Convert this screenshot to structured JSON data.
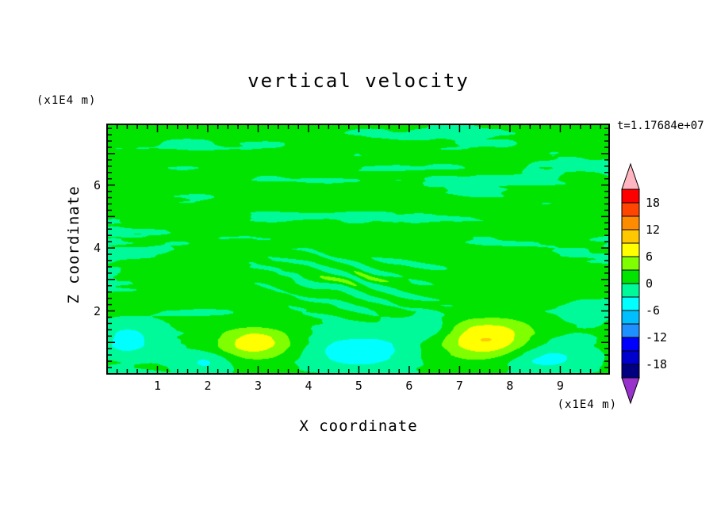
{
  "page": {
    "background": "#ffffff"
  },
  "chart_data": {
    "type": "contour",
    "title": "vertical velocity",
    "xlabel": "X coordinate",
    "ylabel": "Z coordinate",
    "axis_unit_top_left": "(x1E4 m)",
    "axis_unit_bottom_right": "(x1E4 m)",
    "timestamp": "t=1.17684e+07",
    "x_range": [
      0,
      9.97
    ],
    "z_range": [
      0,
      7.93
    ],
    "x_major_ticks": [
      1,
      2,
      3,
      4,
      5,
      6,
      7,
      8,
      9
    ],
    "y_labeled_ticks": [
      2,
      4,
      6
    ],
    "minor_tick_step": 0.2,
    "contour_interval": 3,
    "colorbar": {
      "level_min": -21,
      "level_max": 21,
      "labels": [
        18,
        12,
        6,
        0,
        -6,
        -12,
        -18
      ],
      "colors_bottom_to_top": [
        "#000080",
        "#0000CD",
        "#0000FF",
        "#1E90FF",
        "#00BFFF",
        "#00FFFF",
        "#00FA9A",
        "#00E400",
        "#7FFF00",
        "#FFFF00",
        "#FFC800",
        "#FF8C00",
        "#FF4500",
        "#FF0000"
      ],
      "under_color": "#9932CC",
      "over_color": "#FFB6C1"
    },
    "field": {
      "background_bias": 0.55,
      "streak": {
        "kx1": 0.55,
        "kz1": 2.6,
        "kx2": 1.15,
        "kz2": 5.3,
        "kx3": 2.3,
        "kz3": 10.0,
        "amp_upper": 2.0,
        "amp_lower": 0.95,
        "transition_z0": 1.7,
        "transition_z1": 2.2
      },
      "gaussian_features": [
        {
          "x": 2.92,
          "sx": 0.8,
          "z": 0.95,
          "sz": 0.55,
          "amp": 8.4
        },
        {
          "x": 7.55,
          "sx": 0.95,
          "z": 1.05,
          "sz": 0.65,
          "amp": 9.8
        },
        {
          "x": 5.05,
          "sx": 0.85,
          "z": 0.7,
          "sz": 0.5,
          "amp": -5.2
        },
        {
          "x": 6.4,
          "sx": 0.5,
          "z": 1.45,
          "sz": 0.38,
          "amp": -3.4
        },
        {
          "x": 0.4,
          "sx": 0.55,
          "z": 1.05,
          "sz": 0.55,
          "amp": -4.6
        },
        {
          "x": 8.7,
          "sx": 0.8,
          "z": 0.55,
          "sz": 0.5,
          "amp": -4.4
        },
        {
          "x": 1.95,
          "sx": 0.45,
          "z": 0.35,
          "sz": 0.35,
          "amp": -3.2
        },
        {
          "x": 9.55,
          "sx": 0.5,
          "z": 2.0,
          "sz": 0.45,
          "amp": -2.4
        },
        {
          "x": 4.1,
          "sx": 2.6,
          "z": 0.7,
          "sz": 0.9,
          "amp": -1.6
        },
        {
          "x": 8.0,
          "sx": 1.6,
          "z": 0.4,
          "sz": 0.6,
          "amp": -1.2
        }
      ],
      "ripple": {
        "x": 4.8,
        "sx": 1.5,
        "z": 3.0,
        "sz": 0.85,
        "amp": 2.6,
        "kx": 5.5,
        "kz": 13.0
      }
    }
  }
}
